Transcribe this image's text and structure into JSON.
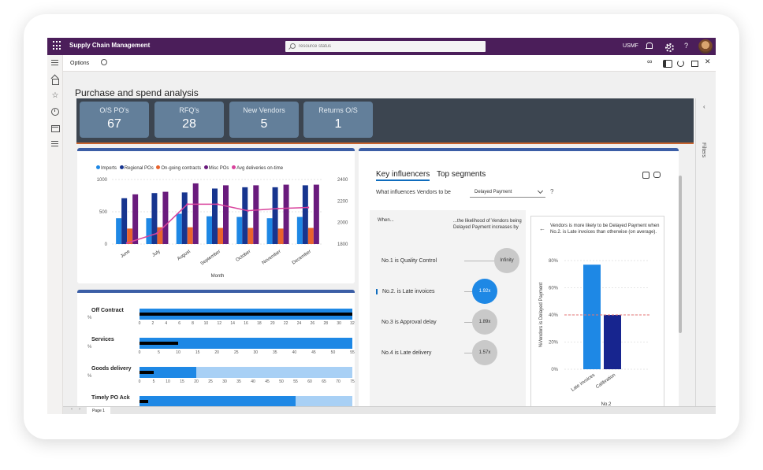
{
  "app": {
    "title": "Supply Chain Management",
    "search_placeholder": "resource status",
    "company": "USMF",
    "help": "?"
  },
  "toolbar": {
    "options_label": "Options"
  },
  "page": {
    "title": "Purchase and spend analysis",
    "kpis": [
      {
        "label": "O/S PO's",
        "value": "67"
      },
      {
        "label": "RFQ's",
        "value": "28"
      },
      {
        "label": "New Vendors",
        "value": "5"
      },
      {
        "label": "Returns O/S",
        "value": "1"
      }
    ],
    "filters_label": "Filters"
  },
  "chart_data": [
    {
      "type": "bar",
      "title": "",
      "xlabel": "Month",
      "ylabel": "",
      "categories": [
        "June",
        "July",
        "August",
        "September",
        "October",
        "November",
        "December"
      ],
      "ylim": [
        0,
        1000
      ],
      "y2lim": [
        1800,
        2400
      ],
      "y_ticks": [
        "1000",
        "500",
        "0"
      ],
      "y2_ticks": [
        "2400",
        "2200",
        "2000",
        "1800"
      ],
      "series": [
        {
          "name": "Imports",
          "color": "#1e88e5",
          "values": [
            400,
            400,
            470,
            430,
            420,
            400,
            420
          ]
        },
        {
          "name": "Regional POs",
          "color": "#17358f",
          "values": [
            710,
            790,
            800,
            860,
            880,
            880,
            910
          ]
        },
        {
          "name": "On-going contracts",
          "color": "#e8632d",
          "values": [
            240,
            260,
            260,
            250,
            250,
            240,
            250
          ]
        },
        {
          "name": "Misc POs",
          "color": "#6a1b7d",
          "values": [
            770,
            810,
            940,
            910,
            910,
            920,
            920
          ]
        },
        {
          "name": "Avg deliveries on-time",
          "color": "#d9449d",
          "axis": "secondary",
          "values": [
            1810,
            1900,
            2170,
            2170,
            2110,
            2130,
            2140
          ]
        }
      ]
    },
    {
      "type": "bar",
      "title": "",
      "rows": [
        {
          "label": "Off Contract",
          "unit": "%",
          "value": 32,
          "target": 32,
          "max": 32,
          "ticks": [
            "0",
            "2",
            "4",
            "6",
            "8",
            "10",
            "12",
            "14",
            "16",
            "18",
            "20",
            "22",
            "24",
            "26",
            "28",
            "30",
            "32"
          ]
        },
        {
          "label": "Services",
          "unit": "%",
          "value": 55,
          "target": 10,
          "max": 55,
          "ticks": [
            "0",
            "5",
            "10",
            "15",
            "20",
            "25",
            "30",
            "35",
            "40",
            "45",
            "50",
            "55"
          ]
        },
        {
          "label": "Goods delivery",
          "unit": "%",
          "value": 20,
          "target": 5,
          "max": 75,
          "ticks": [
            "0",
            "5",
            "10",
            "15",
            "20",
            "25",
            "30",
            "35",
            "40",
            "45",
            "50",
            "55",
            "60",
            "65",
            "70",
            "75"
          ]
        },
        {
          "label": "Timely PO Ack",
          "unit": "",
          "value": 55,
          "target": 3,
          "max": 75,
          "ticks": []
        }
      ]
    },
    {
      "type": "bar",
      "title": "",
      "xlabel": "No.2",
      "ylabel": "%Vendors is Delayed Payment",
      "categories": [
        "Late invoices",
        "Calibration"
      ],
      "values": [
        77,
        40
      ],
      "colors": [
        "#1e88e5",
        "#17258f"
      ],
      "ylim": [
        0,
        80
      ],
      "y_ticks": [
        "80%",
        "60%",
        "40%",
        "20%",
        "0%"
      ],
      "average_line": 40
    }
  ],
  "key_influencers": {
    "tabs": [
      "Key influencers",
      "Top segments"
    ],
    "question": "What influences Vendors to be",
    "selected_value": "Delayed Payment",
    "help": "?",
    "when_header": "When...",
    "likelihood_header": "...the likelihood of Vendors being Delayed Payment increases by",
    "rows": [
      {
        "label": "No.1 is Quality Control",
        "value": "Infinity",
        "selected": false
      },
      {
        "label": "No.2. is Late invoices",
        "value": "1.92x",
        "selected": true
      },
      {
        "label": "No.3 is Approval delay",
        "value": "1.89x",
        "selected": false
      },
      {
        "label": "No.4 is Late delivery",
        "value": "1.57x",
        "selected": false
      }
    ],
    "explanation": "Vendors is more likely to be Delayed Payment when No.2. is Late invoices than otherwise (on average)."
  },
  "bottom": {
    "page_tab": "Page 1"
  }
}
